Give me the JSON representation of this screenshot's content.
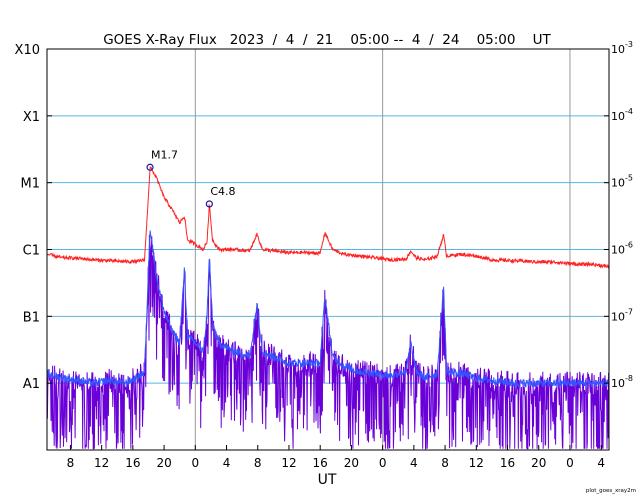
{
  "chart_data": {
    "type": "line",
    "title": "GOES X-Ray Flux   2023  /  4  /  21    05:00 --  4  /  24    05:00    UT",
    "xlabel": "UT",
    "watermark": "plot_goes_xray2m",
    "x_unit": "hours UT since 2023-04-21 05:00",
    "xlim": [
      0,
      72
    ],
    "yscale": "log",
    "ylim": [
      1e-09,
      0.001
    ],
    "grid": "horizontal lines at each flare class, vertical lines at 00 UT",
    "colors": {
      "long_channel": "#ff2222",
      "short_channel_primary": "#3355ff",
      "short_channel_secondary": "#6a00d8",
      "class_gridline": "#5ab4e6",
      "day_gridline": "#999999"
    },
    "y_class_ticks": [
      {
        "label": "X10",
        "value": 0.001
      },
      {
        "label": "X1",
        "value": 0.0001
      },
      {
        "label": "M1",
        "value": 1e-05
      },
      {
        "label": "C1",
        "value": 1e-06
      },
      {
        "label": "B1",
        "value": 1e-07
      },
      {
        "label": "A1",
        "value": 1e-08
      }
    ],
    "y_flux_ticks": [
      {
        "base": "10",
        "exp": "-3",
        "value": 0.001
      },
      {
        "base": "10",
        "exp": "-4",
        "value": 0.0001
      },
      {
        "base": "10",
        "exp": "-5",
        "value": 1e-05
      },
      {
        "base": "10",
        "exp": "-6",
        "value": 1e-06
      },
      {
        "base": "10",
        "exp": "-7",
        "value": 1e-07
      },
      {
        "base": "10",
        "exp": "-8",
        "value": 1e-08
      }
    ],
    "x_ticks": [
      {
        "label": "8",
        "hour": 3
      },
      {
        "label": "12",
        "hour": 7
      },
      {
        "label": "16",
        "hour": 11
      },
      {
        "label": "20",
        "hour": 15
      },
      {
        "label": "0",
        "hour": 19
      },
      {
        "label": "4",
        "hour": 23
      },
      {
        "label": "8",
        "hour": 27
      },
      {
        "label": "12",
        "hour": 31
      },
      {
        "label": "16",
        "hour": 35
      },
      {
        "label": "20",
        "hour": 39
      },
      {
        "label": "0",
        "hour": 43
      },
      {
        "label": "4",
        "hour": 47
      },
      {
        "label": "8",
        "hour": 51
      },
      {
        "label": "12",
        "hour": 55
      },
      {
        "label": "16",
        "hour": 59
      },
      {
        "label": "20",
        "hour": 63
      },
      {
        "label": "0",
        "hour": 67
      },
      {
        "label": "4",
        "hour": 71
      }
    ],
    "day_boundaries": [
      19,
      43,
      67
    ],
    "annotations": [
      {
        "label": "M1.7",
        "hour": 13.2,
        "flux": 1.7e-05
      },
      {
        "label": "C4.8",
        "hour": 20.8,
        "flux": 4.8e-06
      }
    ],
    "series": [
      {
        "channel": "long",
        "x": [
          0,
          2,
          4,
          6,
          8,
          10,
          11.5,
          12.5,
          13.2,
          14,
          15,
          16,
          17,
          17.6,
          18,
          19,
          20,
          20.5,
          20.8,
          21.2,
          22,
          24,
          26,
          26.9,
          27.6,
          29,
          31,
          33,
          35,
          35.6,
          36.6,
          38,
          40,
          42,
          44,
          46,
          46.6,
          47.3,
          48.5,
          50,
          50.8,
          51.2,
          53,
          55,
          57,
          60,
          63,
          65,
          68,
          70,
          72
        ],
        "values": [
          8.5e-07,
          7.5e-07,
          7.4e-07,
          7e-07,
          6.8e-07,
          6.6e-07,
          6.6e-07,
          7e-07,
          1.7e-05,
          1.2e-05,
          6e-06,
          4e-06,
          2.5e-06,
          3.2e-06,
          1.4e-06,
          1.2e-06,
          1e-06,
          1.3e-06,
          4.8e-06,
          1.4e-06,
          1e-06,
          1e-06,
          9.5e-07,
          1.7e-06,
          1e-06,
          9.5e-07,
          9e-07,
          9e-07,
          8.8e-07,
          1.8e-06,
          1e-06,
          8.5e-07,
          8e-07,
          7.5e-07,
          7e-07,
          7.2e-07,
          9.5e-07,
          7.5e-07,
          7e-07,
          8e-07,
          1.65e-06,
          8e-07,
          8.5e-07,
          8e-07,
          7e-07,
          6.8e-07,
          6.5e-07,
          6.5e-07,
          6e-07,
          6e-07,
          5.5e-07
        ]
      },
      {
        "channel": "short",
        "x": [
          0,
          2,
          4,
          6,
          8,
          10,
          11.5,
          12.5,
          13.2,
          14,
          15,
          16,
          17,
          17.6,
          18,
          19,
          20,
          20.5,
          20.8,
          21.2,
          22,
          24,
          26,
          26.9,
          27.6,
          29,
          31,
          33,
          35,
          35.6,
          36.6,
          38,
          40,
          42,
          44,
          46,
          46.6,
          47.3,
          48.5,
          50,
          50.8,
          51.2,
          53,
          55,
          57,
          60,
          63,
          65,
          68,
          70,
          72
        ],
        "values": [
          1.4e-08,
          1.2e-08,
          1.1e-08,
          1e-08,
          1.1e-08,
          1e-08,
          1.2e-08,
          1.5e-08,
          2.2e-06,
          4e-07,
          1.2e-07,
          6e-08,
          4e-08,
          5e-07,
          5e-08,
          4e-08,
          3e-08,
          1e-07,
          8e-07,
          8e-08,
          4e-08,
          3e-08,
          2.5e-08,
          1.5e-07,
          3e-08,
          2.5e-08,
          2e-08,
          2e-08,
          2e-08,
          2e-07,
          2.5e-08,
          1.8e-08,
          1.5e-08,
          1.4e-08,
          1.3e-08,
          1.5e-08,
          4e-08,
          1.5e-08,
          1.2e-08,
          1.4e-08,
          2.8e-07,
          1.5e-08,
          1.4e-08,
          1.2e-08,
          1.1e-08,
          1e-08,
          1e-08,
          1e-08,
          1e-08,
          1e-08,
          1e-08
        ]
      }
    ]
  }
}
